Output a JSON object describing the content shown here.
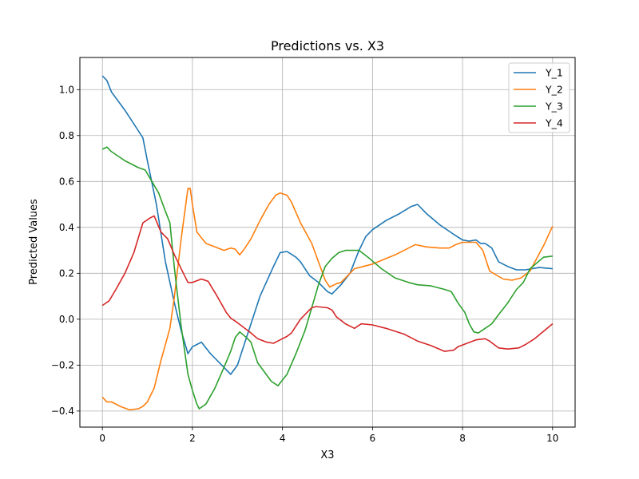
{
  "chart_data": {
    "type": "line",
    "title": "Predictions vs. X3",
    "xlabel": "X3",
    "ylabel": "Predicted Values",
    "xlim": [
      -0.5,
      10.5
    ],
    "ylim": [
      -0.47,
      1.14
    ],
    "xticks": [
      0,
      2,
      4,
      6,
      8,
      10
    ],
    "yticks": [
      -0.4,
      -0.2,
      0.0,
      0.2,
      0.4,
      0.6,
      0.8,
      1.0
    ],
    "xtick_labels": [
      "0",
      "2",
      "4",
      "6",
      "8",
      "10"
    ],
    "ytick_labels": [
      "−0.4",
      "−0.2",
      "0.0",
      "0.2",
      "0.4",
      "0.6",
      "0.8",
      "1.0"
    ],
    "grid": true,
    "legend_position": "top-right",
    "series": [
      {
        "name": "Y_1",
        "color": "#1f77b4",
        "points": [
          [
            0,
            1.06
          ],
          [
            0.1,
            1.04
          ],
          [
            0.2,
            0.99
          ],
          [
            0.5,
            0.91
          ],
          [
            0.8,
            0.82
          ],
          [
            0.9,
            0.79
          ],
          [
            1.0,
            0.69
          ],
          [
            1.2,
            0.5
          ],
          [
            1.4,
            0.25
          ],
          [
            1.6,
            0.07
          ],
          [
            1.75,
            -0.05
          ],
          [
            1.9,
            -0.15
          ],
          [
            2.0,
            -0.12
          ],
          [
            2.2,
            -0.1
          ],
          [
            2.4,
            -0.15
          ],
          [
            2.7,
            -0.21
          ],
          [
            2.85,
            -0.24
          ],
          [
            3.0,
            -0.2
          ],
          [
            3.1,
            -0.14
          ],
          [
            3.3,
            -0.02
          ],
          [
            3.5,
            0.1
          ],
          [
            3.8,
            0.23
          ],
          [
            3.95,
            0.29
          ],
          [
            4.1,
            0.295
          ],
          [
            4.3,
            0.27
          ],
          [
            4.4,
            0.25
          ],
          [
            4.6,
            0.19
          ],
          [
            4.8,
            0.16
          ],
          [
            5.0,
            0.12
          ],
          [
            5.1,
            0.11
          ],
          [
            5.3,
            0.15
          ],
          [
            5.5,
            0.2
          ],
          [
            5.7,
            0.3
          ],
          [
            5.85,
            0.36
          ],
          [
            6.0,
            0.39
          ],
          [
            6.3,
            0.43
          ],
          [
            6.6,
            0.46
          ],
          [
            6.85,
            0.49
          ],
          [
            7.0,
            0.5
          ],
          [
            7.2,
            0.46
          ],
          [
            7.5,
            0.41
          ],
          [
            7.8,
            0.37
          ],
          [
            8.0,
            0.345
          ],
          [
            8.15,
            0.34
          ],
          [
            8.3,
            0.345
          ],
          [
            8.4,
            0.33
          ],
          [
            8.5,
            0.33
          ],
          [
            8.65,
            0.31
          ],
          [
            8.8,
            0.25
          ],
          [
            9.0,
            0.23
          ],
          [
            9.2,
            0.215
          ],
          [
            9.4,
            0.215
          ],
          [
            9.7,
            0.225
          ],
          [
            10.0,
            0.22
          ]
        ]
      },
      {
        "name": "Y_2",
        "color": "#ff7f0e",
        "points": [
          [
            0,
            -0.34
          ],
          [
            0.1,
            -0.36
          ],
          [
            0.2,
            -0.36
          ],
          [
            0.4,
            -0.38
          ],
          [
            0.6,
            -0.395
          ],
          [
            0.8,
            -0.39
          ],
          [
            0.9,
            -0.38
          ],
          [
            1.0,
            -0.36
          ],
          [
            1.15,
            -0.3
          ],
          [
            1.3,
            -0.18
          ],
          [
            1.5,
            -0.04
          ],
          [
            1.6,
            0.1
          ],
          [
            1.75,
            0.35
          ],
          [
            1.9,
            0.57
          ],
          [
            1.95,
            0.57
          ],
          [
            2.0,
            0.5
          ],
          [
            2.1,
            0.38
          ],
          [
            2.3,
            0.33
          ],
          [
            2.5,
            0.315
          ],
          [
            2.7,
            0.3
          ],
          [
            2.85,
            0.31
          ],
          [
            2.95,
            0.305
          ],
          [
            3.05,
            0.28
          ],
          [
            3.15,
            0.305
          ],
          [
            3.3,
            0.35
          ],
          [
            3.5,
            0.43
          ],
          [
            3.7,
            0.5
          ],
          [
            3.85,
            0.54
          ],
          [
            3.95,
            0.55
          ],
          [
            4.1,
            0.54
          ],
          [
            4.2,
            0.51
          ],
          [
            4.4,
            0.42
          ],
          [
            4.65,
            0.33
          ],
          [
            4.8,
            0.25
          ],
          [
            4.95,
            0.17
          ],
          [
            5.05,
            0.14
          ],
          [
            5.2,
            0.155
          ],
          [
            5.3,
            0.16
          ],
          [
            5.6,
            0.22
          ],
          [
            5.8,
            0.23
          ],
          [
            6.0,
            0.24
          ],
          [
            6.5,
            0.28
          ],
          [
            6.8,
            0.31
          ],
          [
            6.95,
            0.325
          ],
          [
            7.2,
            0.315
          ],
          [
            7.5,
            0.31
          ],
          [
            7.7,
            0.31
          ],
          [
            7.85,
            0.325
          ],
          [
            8.0,
            0.335
          ],
          [
            8.3,
            0.335
          ],
          [
            8.45,
            0.3
          ],
          [
            8.6,
            0.21
          ],
          [
            8.9,
            0.175
          ],
          [
            9.1,
            0.17
          ],
          [
            9.3,
            0.18
          ],
          [
            9.5,
            0.21
          ],
          [
            9.8,
            0.32
          ],
          [
            10.0,
            0.405
          ]
        ]
      },
      {
        "name": "Y_3",
        "color": "#2ca02c",
        "points": [
          [
            0,
            0.74
          ],
          [
            0.1,
            0.75
          ],
          [
            0.2,
            0.73
          ],
          [
            0.5,
            0.69
          ],
          [
            0.8,
            0.66
          ],
          [
            0.95,
            0.65
          ],
          [
            1.1,
            0.6
          ],
          [
            1.25,
            0.55
          ],
          [
            1.4,
            0.47
          ],
          [
            1.5,
            0.42
          ],
          [
            1.6,
            0.22
          ],
          [
            1.75,
            -0.03
          ],
          [
            1.9,
            -0.24
          ],
          [
            2.0,
            -0.31
          ],
          [
            2.1,
            -0.37
          ],
          [
            2.15,
            -0.39
          ],
          [
            2.3,
            -0.37
          ],
          [
            2.5,
            -0.3
          ],
          [
            2.7,
            -0.21
          ],
          [
            2.85,
            -0.14
          ],
          [
            2.95,
            -0.08
          ],
          [
            3.05,
            -0.055
          ],
          [
            3.2,
            -0.08
          ],
          [
            3.3,
            -0.1
          ],
          [
            3.45,
            -0.19
          ],
          [
            3.6,
            -0.23
          ],
          [
            3.75,
            -0.27
          ],
          [
            3.9,
            -0.29
          ],
          [
            4.1,
            -0.24
          ],
          [
            4.3,
            -0.15
          ],
          [
            4.5,
            -0.05
          ],
          [
            4.65,
            0.05
          ],
          [
            4.8,
            0.15
          ],
          [
            4.95,
            0.23
          ],
          [
            5.1,
            0.265
          ],
          [
            5.25,
            0.29
          ],
          [
            5.4,
            0.3
          ],
          [
            5.7,
            0.3
          ],
          [
            5.9,
            0.27
          ],
          [
            6.2,
            0.22
          ],
          [
            6.5,
            0.18
          ],
          [
            6.8,
            0.16
          ],
          [
            7.0,
            0.15
          ],
          [
            7.3,
            0.145
          ],
          [
            7.6,
            0.13
          ],
          [
            7.75,
            0.12
          ],
          [
            7.9,
            0.07
          ],
          [
            8.05,
            0.03
          ],
          [
            8.15,
            -0.02
          ],
          [
            8.25,
            -0.055
          ],
          [
            8.35,
            -0.06
          ],
          [
            8.5,
            -0.04
          ],
          [
            8.65,
            -0.02
          ],
          [
            8.8,
            0.02
          ],
          [
            9.0,
            0.07
          ],
          [
            9.2,
            0.13
          ],
          [
            9.35,
            0.16
          ],
          [
            9.5,
            0.22
          ],
          [
            9.8,
            0.27
          ],
          [
            10.0,
            0.275
          ]
        ]
      },
      {
        "name": "Y_4",
        "color": "#d62728",
        "points": [
          [
            0,
            0.06
          ],
          [
            0.15,
            0.08
          ],
          [
            0.3,
            0.13
          ],
          [
            0.5,
            0.2
          ],
          [
            0.7,
            0.29
          ],
          [
            0.9,
            0.42
          ],
          [
            1.05,
            0.44
          ],
          [
            1.15,
            0.45
          ],
          [
            1.3,
            0.38
          ],
          [
            1.45,
            0.35
          ],
          [
            1.6,
            0.28
          ],
          [
            1.8,
            0.2
          ],
          [
            1.9,
            0.16
          ],
          [
            2.0,
            0.16
          ],
          [
            2.2,
            0.175
          ],
          [
            2.35,
            0.165
          ],
          [
            2.55,
            0.1
          ],
          [
            2.75,
            0.03
          ],
          [
            2.85,
            0.005
          ],
          [
            3.0,
            -0.015
          ],
          [
            3.1,
            -0.03
          ],
          [
            3.3,
            -0.06
          ],
          [
            3.45,
            -0.085
          ],
          [
            3.65,
            -0.1
          ],
          [
            3.8,
            -0.105
          ],
          [
            3.95,
            -0.09
          ],
          [
            4.1,
            -0.075
          ],
          [
            4.2,
            -0.06
          ],
          [
            4.4,
            0.0
          ],
          [
            4.55,
            0.03
          ],
          [
            4.65,
            0.05
          ],
          [
            4.75,
            0.055
          ],
          [
            5.0,
            0.05
          ],
          [
            5.1,
            0.04
          ],
          [
            5.2,
            0.01
          ],
          [
            5.4,
            -0.02
          ],
          [
            5.6,
            -0.04
          ],
          [
            5.75,
            -0.02
          ],
          [
            6.0,
            -0.025
          ],
          [
            6.3,
            -0.04
          ],
          [
            6.7,
            -0.065
          ],
          [
            7.0,
            -0.095
          ],
          [
            7.3,
            -0.115
          ],
          [
            7.6,
            -0.14
          ],
          [
            7.8,
            -0.135
          ],
          [
            7.9,
            -0.12
          ],
          [
            8.1,
            -0.105
          ],
          [
            8.3,
            -0.09
          ],
          [
            8.5,
            -0.085
          ],
          [
            8.6,
            -0.095
          ],
          [
            8.8,
            -0.125
          ],
          [
            9.0,
            -0.13
          ],
          [
            9.25,
            -0.125
          ],
          [
            9.4,
            -0.11
          ],
          [
            9.6,
            -0.085
          ],
          [
            10.0,
            -0.02
          ]
        ]
      }
    ]
  }
}
